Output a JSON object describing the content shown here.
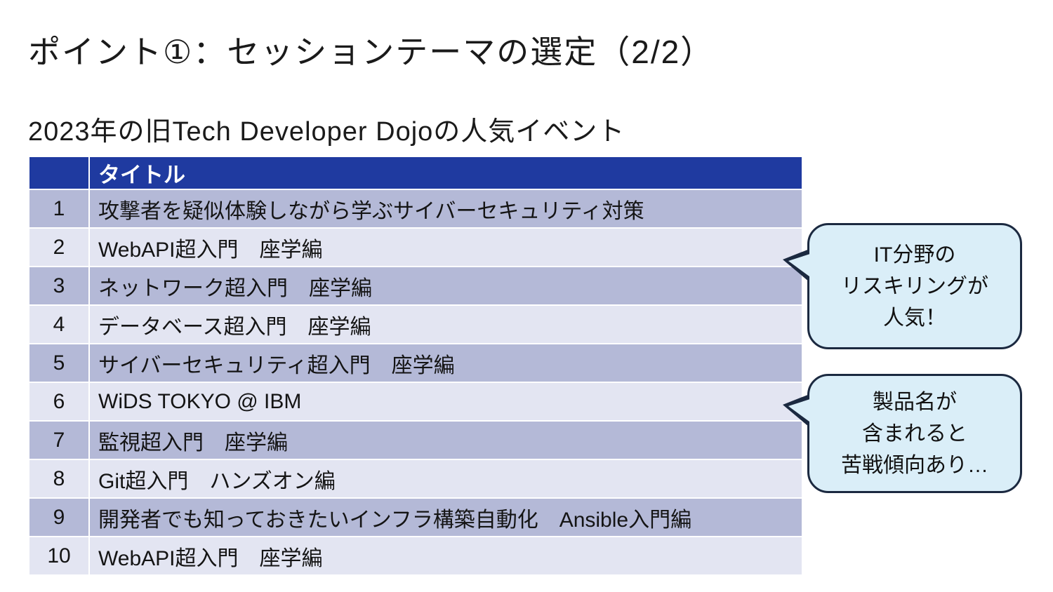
{
  "slide": {
    "title": "ポイント①：セッションテーマの選定（2/2）",
    "subtitle": "2023年の旧Tech Developer Dojoの人気イベント"
  },
  "table": {
    "header": {
      "rank": "",
      "title": "タイトル"
    },
    "rows": [
      {
        "rank": "1",
        "title": "攻撃者を疑似体験しながら学ぶサイバーセキュリティ対策"
      },
      {
        "rank": "2",
        "title": "WebAPI超入門　座学編"
      },
      {
        "rank": "3",
        "title": "ネットワーク超入門　座学編"
      },
      {
        "rank": "4",
        "title": "データベース超入門　座学編"
      },
      {
        "rank": "5",
        "title": "サイバーセキュリティ超入門　座学編"
      },
      {
        "rank": "6",
        "title": "WiDS TOKYO @ IBM"
      },
      {
        "rank": "7",
        "title": "監視超入門　座学編"
      },
      {
        "rank": "8",
        "title": "Git超入門　ハンズオン編"
      },
      {
        "rank": "9",
        "title": "開発者でも知っておきたいインフラ構築自動化　Ansible入門編"
      },
      {
        "rank": "10",
        "title": "WebAPI超入門　座学編"
      }
    ]
  },
  "callouts": [
    {
      "lines": [
        "IT分野の",
        "リスキリングが",
        "人気！"
      ]
    },
    {
      "lines": [
        "製品名が",
        "含まれると",
        "苦戦傾向あり…"
      ]
    }
  ],
  "colors": {
    "header_bg": "#1f3aa0",
    "row_dark": "#b4b9d7",
    "row_light": "#e3e5f2",
    "callout_bg": "#daeef8",
    "callout_border": "#1b2940"
  }
}
